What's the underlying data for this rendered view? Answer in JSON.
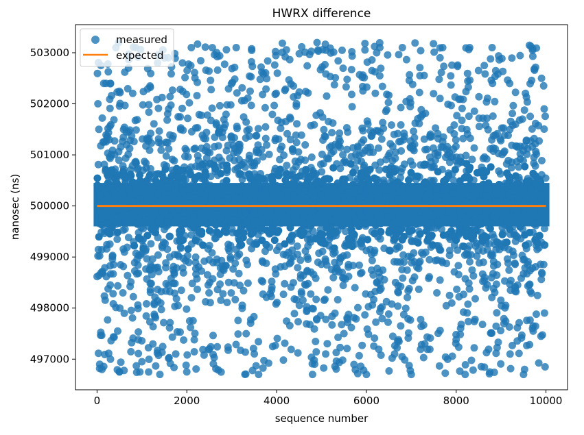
{
  "chart_data": {
    "type": "scatter",
    "title": "HWRX difference",
    "xlabel": "sequence number",
    "ylabel": "nanosec (ns)",
    "xlim": [
      -480,
      10480
    ],
    "ylim": [
      496400,
      503550
    ],
    "xticks": [
      0,
      2000,
      4000,
      6000,
      8000,
      10000
    ],
    "yticks": [
      497000,
      498000,
      499000,
      500000,
      501000,
      502000,
      503000
    ],
    "grid": false,
    "legend_position": "top-left",
    "series": [
      {
        "name": "measured",
        "kind": "scatter",
        "color": "#1f77b4",
        "x_range": [
          0,
          10000
        ],
        "count": 10000,
        "center": 500000,
        "core_band": [
          499600,
          500450
        ],
        "outlier_range": [
          496700,
          503200
        ],
        "sample_points": [
          [
            20,
            502000
          ],
          [
            60,
            496900
          ],
          [
            110,
            496800
          ],
          [
            150,
            502400
          ],
          [
            200,
            502400
          ],
          [
            300,
            502400
          ],
          [
            420,
            503100
          ],
          [
            480,
            503200
          ],
          [
            700,
            502700
          ],
          [
            1350,
            502800
          ],
          [
            1500,
            502900
          ],
          [
            2100,
            503100
          ],
          [
            3100,
            503100
          ],
          [
            4900,
            503200
          ],
          [
            5100,
            503050
          ],
          [
            6300,
            503100
          ],
          [
            6800,
            503100
          ],
          [
            7700,
            503100
          ],
          [
            8300,
            503100
          ],
          [
            8800,
            503100
          ],
          [
            9700,
            503050
          ],
          [
            9900,
            502500
          ],
          [
            9960,
            501900
          ],
          [
            9980,
            496850
          ],
          [
            9500,
            496700
          ],
          [
            8200,
            496700
          ],
          [
            7000,
            496700
          ],
          [
            6000,
            496700
          ],
          [
            4800,
            496700
          ],
          [
            3600,
            496700
          ],
          [
            2000,
            496750
          ],
          [
            1400,
            496700
          ],
          [
            500,
            496750
          ],
          [
            300,
            497000
          ],
          [
            1000,
            496950
          ],
          [
            2500,
            497200
          ],
          [
            5500,
            497500
          ],
          [
            7300,
            497300
          ],
          [
            9200,
            497100
          ],
          [
            9700,
            497600
          ]
        ]
      },
      {
        "name": "expected",
        "kind": "line",
        "color": "#ff7f0e",
        "x": [
          0,
          10000
        ],
        "y": [
          500000,
          500000
        ]
      }
    ]
  }
}
